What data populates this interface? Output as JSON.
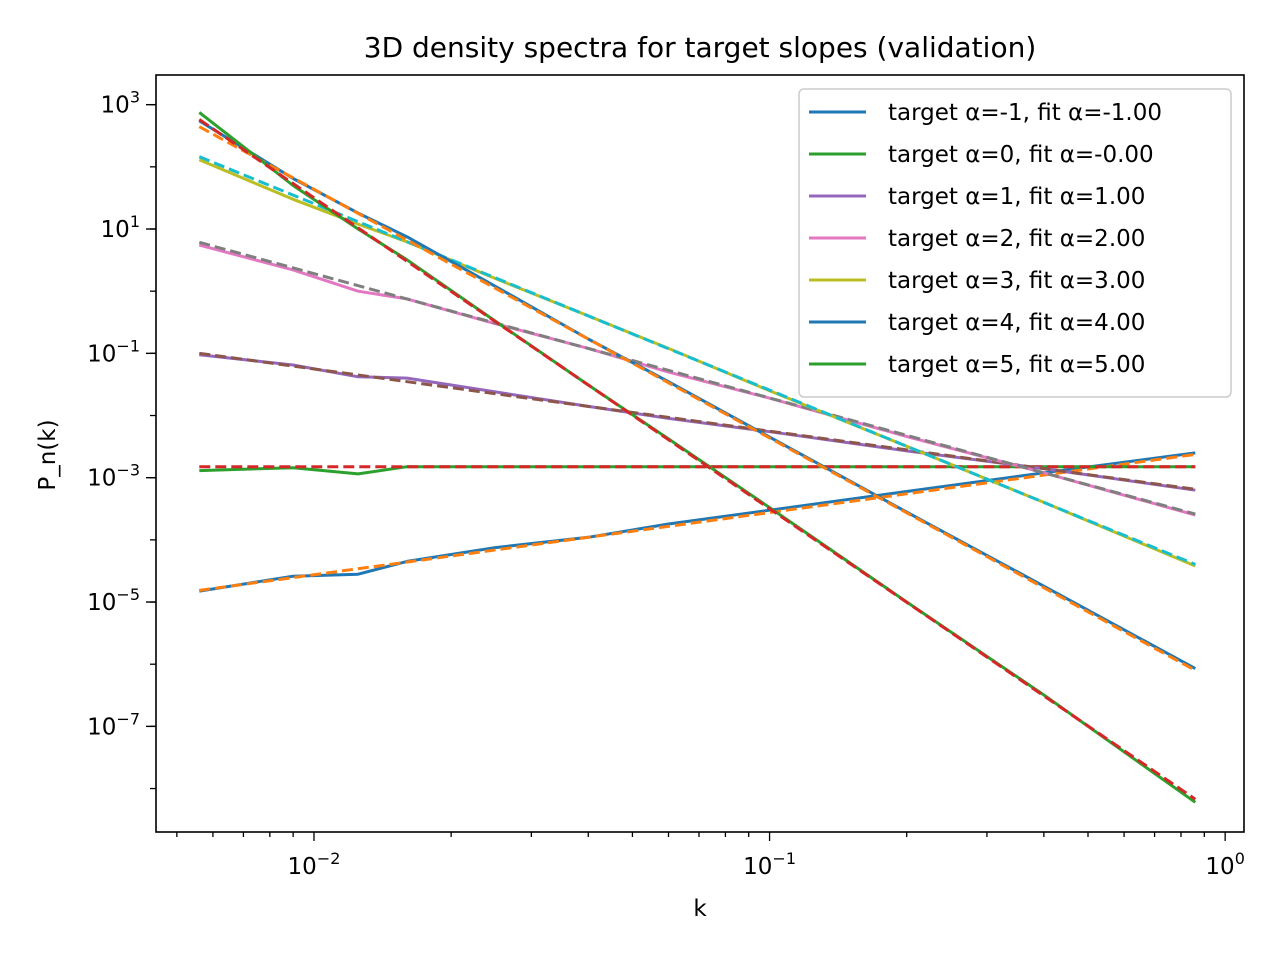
{
  "chart_data": {
    "type": "line",
    "title": "3D density spectra for target slopes (validation)",
    "xlabel": "k",
    "ylabel": "P_n(k)",
    "xscale": "log",
    "yscale": "log",
    "xlim": [
      0.0045,
      1.1
    ],
    "ylim": [
      2e-09,
      3000
    ],
    "grid": false,
    "legend_position": "top-right",
    "x_ticks": [
      {
        "value": 0.01,
        "base": "10",
        "exp": "−2"
      },
      {
        "value": 0.1,
        "base": "10",
        "exp": "−1"
      },
      {
        "value": 1,
        "base": "10",
        "exp": "0"
      }
    ],
    "y_ticks": [
      {
        "value": 1000,
        "base": "10",
        "exp": "3"
      },
      {
        "value": 10,
        "base": "10",
        "exp": "1"
      },
      {
        "value": 0.1,
        "base": "10",
        "exp": "−1"
      },
      {
        "value": 0.001,
        "base": "10",
        "exp": "−3"
      },
      {
        "value": 1e-05,
        "base": "10",
        "exp": "−5"
      },
      {
        "value": 1e-07,
        "base": "10",
        "exp": "−7"
      }
    ],
    "series": [
      {
        "name": "target α=-1, fit α=-1.00",
        "alpha": -1,
        "color": "#1f77b4",
        "fit_color": "#ff7f0e",
        "x": [
          0.0056,
          0.009,
          0.0125,
          0.016,
          0.025,
          0.04,
          0.06,
          0.1,
          0.2,
          0.4,
          0.86
        ],
        "y": [
          1.5e-05,
          2.6e-05,
          2.8e-05,
          4.5e-05,
          7.5e-05,
          0.00011,
          0.00018,
          0.0003,
          0.0006,
          0.0012,
          0.0025
        ]
      },
      {
        "name": "target α=0, fit α=-0.00",
        "alpha": 0,
        "color": "#2ca02c",
        "fit_color": "#d62728",
        "x": [
          0.0056,
          0.009,
          0.0125,
          0.016,
          0.025,
          0.04,
          0.06,
          0.1,
          0.2,
          0.4,
          0.86
        ],
        "y": [
          0.0013,
          0.00145,
          0.00115,
          0.0015,
          0.0015,
          0.0015,
          0.0015,
          0.0015,
          0.0015,
          0.0015,
          0.0015
        ]
      },
      {
        "name": "target α=1, fit α=1.00",
        "alpha": 1,
        "color": "#9467bd",
        "fit_color": "#8c564b",
        "x": [
          0.0056,
          0.009,
          0.0125,
          0.016,
          0.025,
          0.04,
          0.06,
          0.1,
          0.2,
          0.4,
          0.86
        ],
        "y": [
          0.095,
          0.065,
          0.042,
          0.04,
          0.024,
          0.014,
          0.009,
          0.0055,
          0.0027,
          0.0014,
          0.00063
        ]
      },
      {
        "name": "target α=2, fit α=2.00",
        "alpha": 2,
        "color": "#e377c2",
        "fit_color": "#7f7f7f",
        "x": [
          0.0056,
          0.009,
          0.0125,
          0.016,
          0.025,
          0.04,
          0.06,
          0.1,
          0.2,
          0.4,
          0.86
        ],
        "y": [
          5.5,
          2.2,
          1.0,
          0.75,
          0.3,
          0.12,
          0.05,
          0.019,
          0.0046,
          0.0012,
          0.00025
        ]
      },
      {
        "name": "target α=3, fit α=3.00",
        "alpha": 3,
        "color": "#bcbd22",
        "fit_color": "#17becf",
        "x": [
          0.0056,
          0.009,
          0.0125,
          0.016,
          0.025,
          0.04,
          0.06,
          0.1,
          0.2,
          0.4,
          0.86
        ],
        "y": [
          130,
          30,
          12,
          6.2,
          1.6,
          0.4,
          0.12,
          0.025,
          0.0032,
          0.0004,
          3.8e-05
        ]
      },
      {
        "name": "target α=4, fit α=4.00",
        "alpha": 4,
        "color": "#1f77b4",
        "fit_color": "#ff7f0e",
        "x": [
          0.0056,
          0.009,
          0.0125,
          0.016,
          0.025,
          0.04,
          0.06,
          0.1,
          0.2,
          0.4,
          0.86
        ],
        "y": [
          550,
          65,
          18,
          7.5,
          1.2,
          0.17,
          0.035,
          0.0045,
          0.00028,
          1.8e-05,
          8.5e-07
        ]
      },
      {
        "name": "target α=5, fit α=5.00",
        "alpha": 5,
        "color": "#2ca02c",
        "fit_color": "#d62728",
        "x": [
          0.0056,
          0.009,
          0.0125,
          0.016,
          0.025,
          0.04,
          0.06,
          0.1,
          0.2,
          0.4,
          0.86
        ],
        "y": [
          750,
          50,
          10,
          3.2,
          0.33,
          0.031,
          0.0042,
          0.00033,
          1e-05,
          3.2e-07,
          6e-09
        ]
      }
    ]
  }
}
